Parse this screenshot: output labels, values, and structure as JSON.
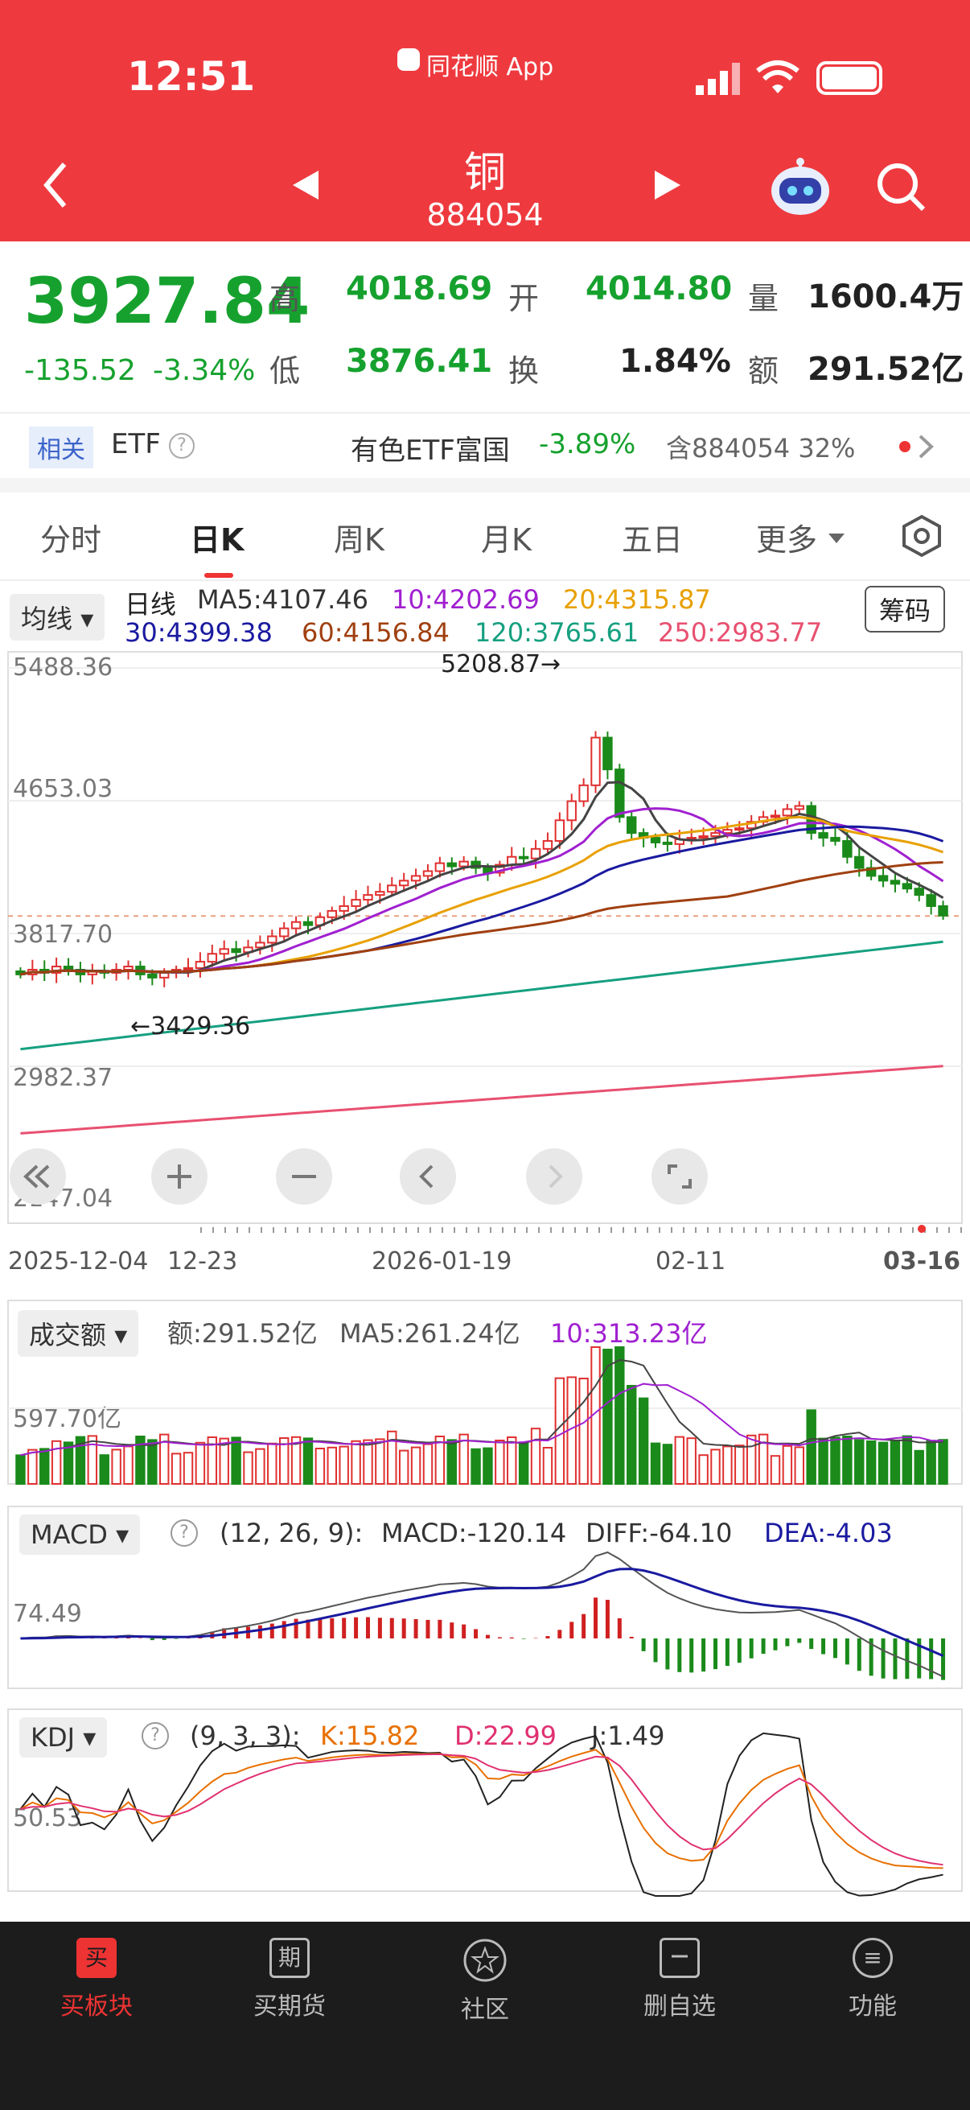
{
  "status": {
    "time": "12:51",
    "app": "同花顺 App"
  },
  "nav": {
    "title": "铜",
    "code": "884054"
  },
  "quote": {
    "price": "3927.84",
    "change": "-135.52",
    "change_pct": "-3.34%",
    "high_label": "高",
    "high": "4018.69",
    "open_label": "开",
    "open": "4014.80",
    "vol_label": "量",
    "vol": "1600.4万",
    "low_label": "低",
    "low": "3876.41",
    "turn_label": "换",
    "turn": "1.84%",
    "amt_label": "额",
    "amt": "291.52亿"
  },
  "etf": {
    "tag": "相关",
    "label": "ETF",
    "name": "有色ETF富国",
    "pct": "-3.89%",
    "hold": "含884054 32%"
  },
  "tabs": [
    "分时",
    "日K",
    "周K",
    "月K",
    "五日",
    "更多"
  ],
  "ma": {
    "sel": "均线",
    "line0": "日线",
    "ma5": "MA5:4107.46",
    "ma10": "10:4202.69",
    "ma20": "20:4315.87",
    "ma30": "30:4399.38",
    "ma60": "60:4156.84",
    "ma120": "120:3765.61",
    "ma250": "250:2983.77",
    "chip": "筹码"
  },
  "axes": {
    "p1": "5488.36",
    "p2": "4653.03",
    "p3": "3817.70",
    "p4": "2982.37",
    "p5": "2147.04",
    "hi": "5208.87→",
    "lo": "←3429.36",
    "d1": "2025-12-04",
    "d2": "12-23",
    "d3": "2026-01-19",
    "d4": "02-11",
    "d5": "03-16"
  },
  "volume": {
    "sel": "成交额",
    "amt": "额:291.52亿",
    "ma5": "MA5:261.24亿",
    "ma10": "10:313.23亿",
    "axis": "597.70亿"
  },
  "macd": {
    "sel": "MACD",
    "params": "(12, 26, 9):",
    "macd": "MACD:-120.14",
    "diff": "DIFF:-64.10",
    "dea": "DEA:-4.03",
    "axis": "74.49"
  },
  "kdj": {
    "sel": "KDJ",
    "params": "(9, 3, 3):",
    "k": "K:15.82",
    "d": "D:22.99",
    "j": "J:1.49",
    "axis": "50.53"
  },
  "bottom": [
    "买板块",
    "买期货",
    "社区",
    "删自选",
    "功能"
  ],
  "icons": {
    "b0": "买",
    "b1": "期",
    "b4": "≡"
  },
  "chart_data": {
    "type": "candlestick",
    "title": "日K",
    "closes": [
      3560,
      3590,
      3570,
      3610,
      3590,
      3560,
      3580,
      3570,
      3590,
      3610,
      3560,
      3540,
      3570,
      3590,
      3600,
      3640,
      3690,
      3720,
      3700,
      3730,
      3760,
      3800,
      3850,
      3890,
      3870,
      3920,
      3960,
      3990,
      4030,
      4060,
      4080,
      4120,
      4150,
      4180,
      4210,
      4260,
      4240,
      4270,
      4230,
      4200,
      4250,
      4300,
      4290,
      4350,
      4400,
      4530,
      4650,
      4750,
      5050,
      4850,
      4550,
      4450,
      4420,
      4390,
      4380,
      4410,
      4420,
      4430,
      4450,
      4470,
      4480,
      4520,
      4550,
      4560,
      4600,
      4620,
      4450,
      4420,
      4400,
      4300,
      4230,
      4180,
      4150,
      4130,
      4100,
      4060,
      3990,
      3930
    ],
    "date_labels": [
      "2025-12-04",
      "12-23",
      "2026-01-19",
      "02-11",
      "03-16"
    ]
  }
}
